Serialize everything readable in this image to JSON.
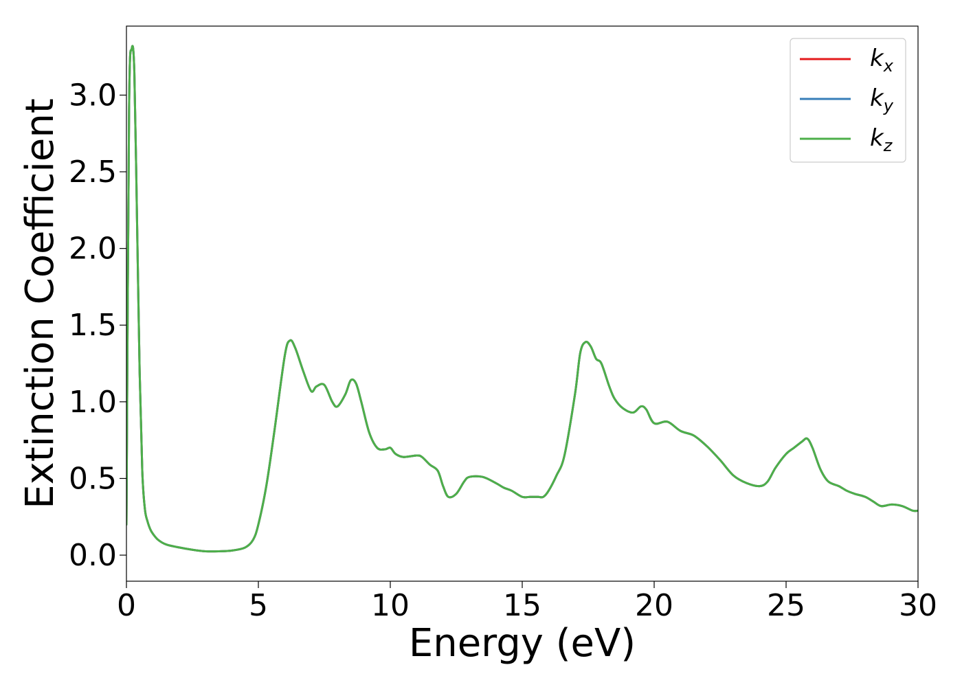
{
  "chart_data": {
    "type": "line",
    "title": "",
    "xlabel": "Energy (eV)",
    "ylabel": "Extinction Coefficient",
    "xlim": [
      0,
      30
    ],
    "ylim": [
      -0.17,
      3.45
    ],
    "xticks": [
      0,
      5,
      10,
      15,
      20,
      25,
      30
    ],
    "xtick_labels": [
      "0",
      "5",
      "10",
      "15",
      "20",
      "25",
      "30"
    ],
    "yticks": [
      0.0,
      0.5,
      1.0,
      1.5,
      2.0,
      2.5,
      3.0
    ],
    "ytick_labels": [
      "0.0",
      "0.5",
      "1.0",
      "1.5",
      "2.0",
      "2.5",
      "3.0"
    ],
    "grid": false,
    "legend_position": "top-right",
    "x": [
      0,
      0.1,
      0.2,
      0.3,
      0.4,
      0.5,
      0.6,
      0.7,
      0.8,
      0.9,
      1.0,
      1.2,
      1.5,
      2.0,
      2.5,
      3.0,
      3.5,
      4.0,
      4.5,
      4.8,
      5.0,
      5.3,
      5.6,
      6.0,
      6.2,
      6.4,
      6.7,
      7.0,
      7.2,
      7.5,
      7.8,
      8.0,
      8.3,
      8.5,
      8.7,
      8.9,
      9.2,
      9.5,
      9.8,
      10.0,
      10.2,
      10.5,
      11.0,
      11.2,
      11.5,
      11.8,
      12.0,
      12.2,
      12.5,
      12.8,
      13.0,
      13.5,
      14.0,
      14.3,
      14.6,
      15.0,
      15.3,
      15.6,
      15.8,
      16.0,
      16.3,
      16.6,
      17.0,
      17.2,
      17.4,
      17.6,
      17.8,
      18.0,
      18.3,
      18.5,
      18.8,
      19.2,
      19.5,
      19.7,
      20.0,
      20.5,
      21.0,
      21.5,
      22.0,
      22.5,
      23.0,
      23.5,
      24.0,
      24.3,
      24.6,
      25.0,
      25.3,
      25.6,
      25.8,
      26.0,
      26.3,
      26.6,
      27.0,
      27.3,
      27.6,
      28.0,
      28.3,
      28.6,
      29.0,
      29.4,
      29.8,
      30.0
    ],
    "series": [
      {
        "name": "k_x",
        "color": "#e41a1c",
        "y": [
          0.2,
          2.9,
          3.3,
          3.15,
          2.2,
          1.2,
          0.55,
          0.3,
          0.22,
          0.17,
          0.14,
          0.1,
          0.07,
          0.05,
          0.035,
          0.025,
          0.025,
          0.03,
          0.05,
          0.1,
          0.2,
          0.45,
          0.8,
          1.3,
          1.4,
          1.35,
          1.2,
          1.07,
          1.1,
          1.11,
          1.0,
          0.97,
          1.05,
          1.14,
          1.12,
          1.0,
          0.8,
          0.7,
          0.69,
          0.7,
          0.66,
          0.64,
          0.65,
          0.64,
          0.59,
          0.55,
          0.45,
          0.38,
          0.4,
          0.48,
          0.51,
          0.51,
          0.47,
          0.44,
          0.42,
          0.38,
          0.38,
          0.38,
          0.38,
          0.42,
          0.52,
          0.65,
          1.05,
          1.32,
          1.39,
          1.36,
          1.28,
          1.25,
          1.1,
          1.02,
          0.96,
          0.93,
          0.97,
          0.95,
          0.86,
          0.87,
          0.81,
          0.78,
          0.71,
          0.62,
          0.52,
          0.47,
          0.45,
          0.48,
          0.57,
          0.66,
          0.7,
          0.74,
          0.76,
          0.7,
          0.56,
          0.48,
          0.45,
          0.42,
          0.4,
          0.38,
          0.35,
          0.32,
          0.33,
          0.32,
          0.29,
          0.29
        ]
      },
      {
        "name": "k_y",
        "color": "#377eb8",
        "y": [
          0.2,
          2.9,
          3.3,
          3.15,
          2.2,
          1.2,
          0.55,
          0.3,
          0.22,
          0.17,
          0.14,
          0.1,
          0.07,
          0.05,
          0.035,
          0.025,
          0.025,
          0.03,
          0.05,
          0.1,
          0.2,
          0.45,
          0.8,
          1.3,
          1.4,
          1.35,
          1.2,
          1.07,
          1.1,
          1.11,
          1.0,
          0.97,
          1.05,
          1.14,
          1.12,
          1.0,
          0.8,
          0.7,
          0.69,
          0.7,
          0.66,
          0.64,
          0.65,
          0.64,
          0.59,
          0.55,
          0.45,
          0.38,
          0.4,
          0.48,
          0.51,
          0.51,
          0.47,
          0.44,
          0.42,
          0.38,
          0.38,
          0.38,
          0.38,
          0.42,
          0.52,
          0.65,
          1.05,
          1.32,
          1.39,
          1.36,
          1.28,
          1.25,
          1.1,
          1.02,
          0.96,
          0.93,
          0.97,
          0.95,
          0.86,
          0.87,
          0.81,
          0.78,
          0.71,
          0.62,
          0.52,
          0.47,
          0.45,
          0.48,
          0.57,
          0.66,
          0.7,
          0.74,
          0.76,
          0.7,
          0.56,
          0.48,
          0.45,
          0.42,
          0.4,
          0.38,
          0.35,
          0.32,
          0.33,
          0.32,
          0.29,
          0.29
        ]
      },
      {
        "name": "k_z",
        "color": "#4daf4a",
        "y": [
          0.2,
          2.9,
          3.3,
          3.15,
          2.2,
          1.2,
          0.55,
          0.3,
          0.22,
          0.17,
          0.14,
          0.1,
          0.07,
          0.05,
          0.035,
          0.025,
          0.025,
          0.03,
          0.05,
          0.1,
          0.2,
          0.45,
          0.8,
          1.3,
          1.4,
          1.35,
          1.2,
          1.07,
          1.1,
          1.11,
          1.0,
          0.97,
          1.05,
          1.14,
          1.12,
          1.0,
          0.8,
          0.7,
          0.69,
          0.7,
          0.66,
          0.64,
          0.65,
          0.64,
          0.59,
          0.55,
          0.45,
          0.38,
          0.4,
          0.48,
          0.51,
          0.51,
          0.47,
          0.44,
          0.42,
          0.38,
          0.38,
          0.38,
          0.38,
          0.42,
          0.52,
          0.65,
          1.05,
          1.32,
          1.39,
          1.36,
          1.28,
          1.25,
          1.1,
          1.02,
          0.96,
          0.93,
          0.97,
          0.95,
          0.86,
          0.87,
          0.81,
          0.78,
          0.71,
          0.62,
          0.52,
          0.47,
          0.45,
          0.48,
          0.57,
          0.66,
          0.7,
          0.74,
          0.76,
          0.7,
          0.56,
          0.48,
          0.45,
          0.42,
          0.4,
          0.38,
          0.35,
          0.32,
          0.33,
          0.32,
          0.29,
          0.29
        ]
      }
    ],
    "legend": [
      {
        "base": "k",
        "sub": "x"
      },
      {
        "base": "k",
        "sub": "y"
      },
      {
        "base": "k",
        "sub": "z"
      }
    ]
  }
}
